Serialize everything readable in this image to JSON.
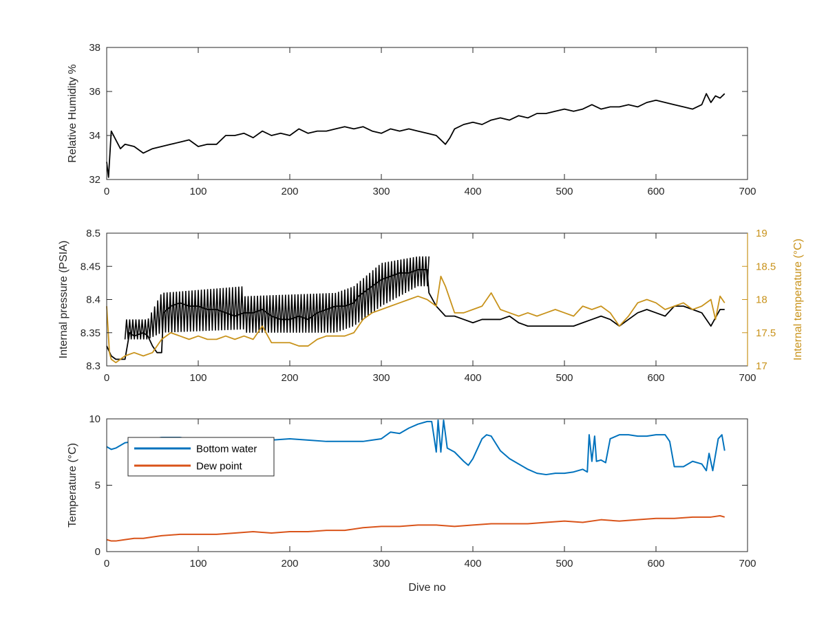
{
  "colors": {
    "black": "#000000",
    "gold": "#C8921A",
    "blue": "#0072BD",
    "orange": "#D95319",
    "axis": "#262626"
  },
  "chart_data": [
    {
      "type": "line",
      "xlabel": "",
      "ylabel": "Relative Humidity %",
      "xlim": [
        0,
        700
      ],
      "ylim": [
        32,
        38
      ],
      "xticks": [
        "0",
        "100",
        "200",
        "300",
        "400",
        "500",
        "600",
        "700"
      ],
      "yticks": [
        "32",
        "34",
        "36",
        "38"
      ],
      "series": [
        {
          "color": "#000000",
          "x": [
            0,
            2,
            5,
            10,
            15,
            20,
            30,
            40,
            50,
            60,
            70,
            80,
            90,
            100,
            110,
            120,
            130,
            140,
            150,
            160,
            170,
            180,
            190,
            200,
            210,
            220,
            230,
            240,
            250,
            260,
            270,
            280,
            290,
            300,
            310,
            320,
            330,
            340,
            350,
            360,
            370,
            375,
            380,
            390,
            400,
            410,
            420,
            430,
            440,
            450,
            460,
            470,
            480,
            490,
            500,
            510,
            520,
            530,
            540,
            550,
            560,
            570,
            580,
            590,
            600,
            610,
            620,
            630,
            640,
            650,
            655,
            660,
            665,
            670,
            675
          ],
          "y": [
            32.8,
            32.1,
            34.2,
            33.8,
            33.4,
            33.6,
            33.5,
            33.2,
            33.4,
            33.5,
            33.6,
            33.7,
            33.8,
            33.5,
            33.6,
            33.6,
            34.0,
            34.0,
            34.1,
            33.9,
            34.2,
            34.0,
            34.1,
            34.0,
            34.3,
            34.1,
            34.2,
            34.2,
            34.3,
            34.4,
            34.3,
            34.4,
            34.2,
            34.1,
            34.3,
            34.2,
            34.3,
            34.2,
            34.1,
            34.0,
            33.6,
            33.9,
            34.3,
            34.5,
            34.6,
            34.5,
            34.7,
            34.8,
            34.7,
            34.9,
            34.8,
            35.0,
            35.0,
            35.1,
            35.2,
            35.1,
            35.2,
            35.4,
            35.2,
            35.3,
            35.3,
            35.4,
            35.3,
            35.5,
            35.6,
            35.5,
            35.4,
            35.3,
            35.2,
            35.4,
            35.9,
            35.5,
            35.8,
            35.7,
            35.9
          ]
        }
      ]
    },
    {
      "type": "line",
      "xlabel": "",
      "ylabel": "Internal pressure (PSIA)",
      "y2label": "Internal temperature (°C)",
      "xlim": [
        0,
        700
      ],
      "ylim": [
        8.3,
        8.5
      ],
      "y2lim": [
        17,
        19
      ],
      "xticks": [
        "0",
        "100",
        "200",
        "300",
        "400",
        "500",
        "600",
        "700"
      ],
      "yticks": [
        "8.3",
        "8.35",
        "8.4",
        "8.45",
        "8.5"
      ],
      "y2ticks": [
        "17",
        "17.5",
        "18",
        "18.5",
        "19"
      ],
      "series": [
        {
          "axis": "left",
          "color": "#000000",
          "x": [
            0,
            5,
            10,
            15,
            20,
            25,
            30,
            40,
            45,
            50,
            55,
            60,
            62,
            70,
            80,
            90,
            100,
            110,
            120,
            130,
            140,
            150,
            160,
            170,
            180,
            190,
            200,
            210,
            220,
            230,
            240,
            250,
            260,
            270,
            275,
            280,
            290,
            300,
            310,
            320,
            330,
            340,
            350,
            352,
            360,
            370,
            380,
            390,
            400,
            410,
            420,
            430,
            440,
            450,
            460,
            470,
            480,
            490,
            500,
            510,
            520,
            530,
            540,
            550,
            560,
            570,
            580,
            590,
            600,
            610,
            620,
            630,
            640,
            650,
            660,
            670,
            675
          ],
          "y": [
            8.33,
            8.315,
            8.31,
            8.31,
            8.31,
            8.35,
            8.345,
            8.35,
            8.345,
            8.33,
            8.32,
            8.32,
            8.38,
            8.39,
            8.395,
            8.39,
            8.39,
            8.385,
            8.385,
            8.38,
            8.375,
            8.38,
            8.38,
            8.385,
            8.375,
            8.37,
            8.37,
            8.375,
            8.37,
            8.38,
            8.385,
            8.39,
            8.39,
            8.395,
            8.405,
            8.41,
            8.42,
            8.43,
            8.435,
            8.44,
            8.44,
            8.445,
            8.445,
            8.41,
            8.39,
            8.375,
            8.375,
            8.37,
            8.365,
            8.37,
            8.37,
            8.37,
            8.375,
            8.365,
            8.36,
            8.36,
            8.36,
            8.36,
            8.36,
            8.36,
            8.365,
            8.37,
            8.375,
            8.37,
            8.36,
            8.37,
            8.38,
            8.385,
            8.38,
            8.375,
            8.39,
            8.39,
            8.385,
            8.38,
            8.36,
            8.385,
            8.385
          ]
        },
        {
          "axis": "left",
          "color": "#000000",
          "band": true,
          "x": [
            20,
            45,
            60,
            150,
            151,
            250,
            270,
            300,
            340,
            352
          ],
          "y_low": [
            8.34,
            8.34,
            8.35,
            8.355,
            8.35,
            8.35,
            8.36,
            8.39,
            8.42,
            8.42
          ],
          "y_high": [
            8.37,
            8.37,
            8.41,
            8.42,
            8.405,
            8.41,
            8.42,
            8.455,
            8.465,
            8.465
          ]
        },
        {
          "axis": "right",
          "color": "#C8921A",
          "x": [
            0,
            3,
            5,
            10,
            15,
            20,
            30,
            40,
            50,
            60,
            70,
            80,
            90,
            100,
            110,
            120,
            130,
            140,
            150,
            160,
            170,
            180,
            190,
            200,
            210,
            220,
            230,
            240,
            250,
            260,
            270,
            280,
            290,
            300,
            310,
            320,
            330,
            340,
            350,
            360,
            365,
            370,
            380,
            390,
            400,
            410,
            420,
            430,
            440,
            450,
            460,
            470,
            480,
            490,
            500,
            510,
            520,
            530,
            540,
            550,
            560,
            570,
            580,
            590,
            600,
            610,
            620,
            630,
            640,
            650,
            660,
            665,
            670,
            675
          ],
          "y": [
            17.9,
            17.2,
            17.1,
            17.05,
            17.1,
            17.15,
            17.2,
            17.15,
            17.2,
            17.4,
            17.5,
            17.45,
            17.4,
            17.45,
            17.4,
            17.4,
            17.45,
            17.4,
            17.45,
            17.4,
            17.6,
            17.35,
            17.35,
            17.35,
            17.3,
            17.3,
            17.4,
            17.45,
            17.45,
            17.45,
            17.5,
            17.7,
            17.8,
            17.85,
            17.9,
            17.95,
            18.0,
            18.05,
            18.0,
            17.9,
            18.35,
            18.2,
            17.8,
            17.8,
            17.85,
            17.9,
            18.1,
            17.85,
            17.8,
            17.75,
            17.8,
            17.75,
            17.8,
            17.85,
            17.8,
            17.75,
            17.9,
            17.85,
            17.9,
            17.8,
            17.6,
            17.75,
            17.95,
            18.0,
            17.95,
            17.85,
            17.9,
            17.95,
            17.85,
            17.9,
            18.0,
            17.7,
            18.05,
            17.95
          ]
        }
      ]
    },
    {
      "type": "line",
      "xlabel": "Dive no",
      "ylabel": "Temperature (°C)",
      "xlim": [
        0,
        700
      ],
      "ylim": [
        0,
        10
      ],
      "xticks": [
        "0",
        "100",
        "200",
        "300",
        "400",
        "500",
        "600",
        "700"
      ],
      "yticks": [
        "0",
        "5",
        "10"
      ],
      "legend": "top-left",
      "series": [
        {
          "name": "Bottom water",
          "color": "#0072BD",
          "x": [
            0,
            5,
            10,
            20,
            30,
            40,
            50,
            60,
            70,
            80,
            90,
            100,
            120,
            140,
            160,
            180,
            200,
            220,
            240,
            260,
            280,
            290,
            300,
            310,
            320,
            330,
            340,
            350,
            355,
            360,
            362,
            365,
            368,
            372,
            380,
            390,
            395,
            400,
            410,
            415,
            420,
            430,
            440,
            450,
            460,
            470,
            480,
            490,
            500,
            510,
            520,
            525,
            527,
            530,
            533,
            535,
            540,
            545,
            550,
            560,
            570,
            580,
            590,
            600,
            610,
            615,
            620,
            630,
            640,
            650,
            655,
            658,
            662,
            668,
            672,
            675
          ],
          "y": [
            7.9,
            7.7,
            7.8,
            8.2,
            8.3,
            8.4,
            8.5,
            8.6,
            8.6,
            8.6,
            8.5,
            8.5,
            8.5,
            8.5,
            8.5,
            8.4,
            8.5,
            8.4,
            8.3,
            8.3,
            8.3,
            8.4,
            8.5,
            9.0,
            8.9,
            9.3,
            9.6,
            9.8,
            9.8,
            7.5,
            9.9,
            7.5,
            9.9,
            7.8,
            7.5,
            6.8,
            6.5,
            7.0,
            8.5,
            8.8,
            8.7,
            7.6,
            7.0,
            6.6,
            6.2,
            5.9,
            5.8,
            5.9,
            5.9,
            6.0,
            6.2,
            6.0,
            8.8,
            6.8,
            8.7,
            6.8,
            6.9,
            6.7,
            8.5,
            8.8,
            8.8,
            8.7,
            8.7,
            8.8,
            8.8,
            8.3,
            6.4,
            6.4,
            6.8,
            6.6,
            6.1,
            7.4,
            6.1,
            8.5,
            8.8,
            7.6
          ]
        },
        {
          "name": "Dew point",
          "color": "#D95319",
          "x": [
            0,
            5,
            10,
            20,
            30,
            40,
            50,
            60,
            80,
            100,
            120,
            140,
            160,
            180,
            200,
            220,
            240,
            260,
            280,
            300,
            320,
            340,
            360,
            380,
            400,
            420,
            440,
            460,
            480,
            500,
            520,
            540,
            560,
            580,
            600,
            620,
            640,
            660,
            670,
            675
          ],
          "y": [
            0.9,
            0.8,
            0.8,
            0.9,
            1.0,
            1.0,
            1.1,
            1.2,
            1.3,
            1.3,
            1.3,
            1.4,
            1.5,
            1.4,
            1.5,
            1.5,
            1.6,
            1.6,
            1.8,
            1.9,
            1.9,
            2.0,
            2.0,
            1.9,
            2.0,
            2.1,
            2.1,
            2.1,
            2.2,
            2.3,
            2.2,
            2.4,
            2.3,
            2.4,
            2.5,
            2.5,
            2.6,
            2.6,
            2.7,
            2.6
          ]
        }
      ]
    }
  ]
}
